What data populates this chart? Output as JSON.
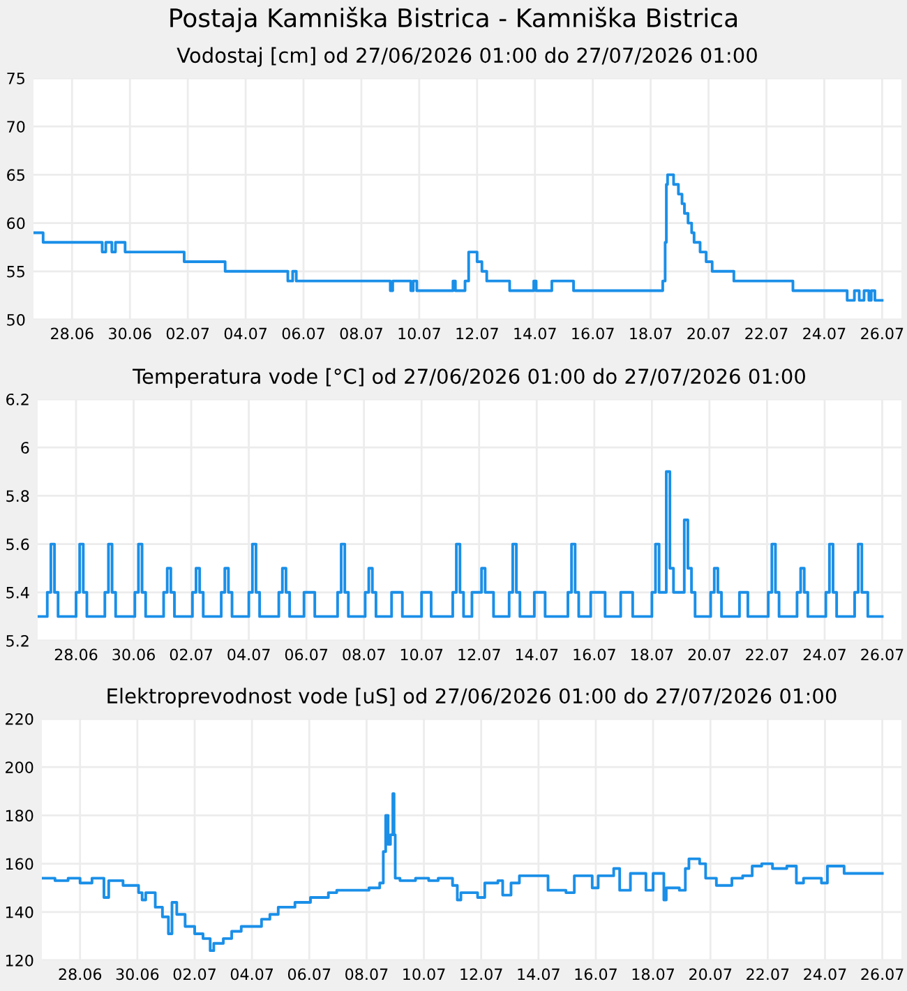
{
  "chart_data": [
    {
      "type": "step",
      "title": "Postaja Kamniška Bistrica - Kamniška Bistrica",
      "subtitle": "Vodostaj [cm] od 27/06/2026 01:00 do 27/07/2026 01:00",
      "grid": true,
      "line_style": "solid",
      "marker": "none",
      "xlim": [
        "2026-06-26T16:00",
        "2026-07-26T16:00"
      ],
      "ylim": [
        50,
        75
      ],
      "yticks": [
        50,
        55,
        60,
        65,
        70,
        75
      ],
      "xticks": [
        {
          "value": "2026-06-28",
          "label": "28.06"
        },
        {
          "value": "2026-06-30",
          "label": "30.06"
        },
        {
          "value": "2026-07-02",
          "label": "02.07"
        },
        {
          "value": "2026-07-04",
          "label": "04.07"
        },
        {
          "value": "2026-07-06",
          "label": "06.07"
        },
        {
          "value": "2026-07-08",
          "label": "08.07"
        },
        {
          "value": "2026-07-10",
          "label": "10.07"
        },
        {
          "value": "2026-07-12",
          "label": "12.07"
        },
        {
          "value": "2026-07-14",
          "label": "14.07"
        },
        {
          "value": "2026-07-16",
          "label": "16.07"
        },
        {
          "value": "2026-07-18",
          "label": "18.07"
        },
        {
          "value": "2026-07-20",
          "label": "20.07"
        },
        {
          "value": "2026-07-22",
          "label": "22.07"
        },
        {
          "value": "2026-07-24",
          "label": "24.07"
        },
        {
          "value": "2026-07-26",
          "label": "26.07"
        }
      ],
      "x": [
        "2026-06-26T16:00",
        "2026-06-27T00:00",
        "2026-06-29T01:00",
        "2026-06-29T04:00",
        "2026-06-29T09:00",
        "2026-06-29T12:00",
        "2026-06-29T20:00",
        "2026-06-30T01:00",
        "2026-07-01T21:00",
        "2026-07-03T07:00",
        "2026-07-05T11:00",
        "2026-07-05T15:00",
        "2026-07-05T18:00",
        "2026-07-06T00:00",
        "2026-07-09T00:00",
        "2026-07-09T02:00",
        "2026-07-09T17:00",
        "2026-07-09T19:00",
        "2026-07-09T22:00",
        "2026-07-10T00:00",
        "2026-07-11T04:00",
        "2026-07-11T06:00",
        "2026-07-11T14:00",
        "2026-07-11T17:00",
        "2026-07-12T00:00",
        "2026-07-12T04:00",
        "2026-07-12T08:00",
        "2026-07-13T03:00",
        "2026-07-13T23:00",
        "2026-07-14T01:00",
        "2026-07-14T14:00",
        "2026-07-15T08:00",
        "2026-07-18T10:00",
        "2026-07-18T12:00",
        "2026-07-18T13:00",
        "2026-07-18T14:00",
        "2026-07-18T19:00",
        "2026-07-18T23:00",
        "2026-07-19T02:00",
        "2026-07-19T04:00",
        "2026-07-19T07:00",
        "2026-07-19T10:00",
        "2026-07-19T12:00",
        "2026-07-19T17:00",
        "2026-07-19T22:00",
        "2026-07-20T03:00",
        "2026-07-20T21:00",
        "2026-07-22T22:00",
        "2026-07-24T19:00",
        "2026-07-25T01:00",
        "2026-07-25T05:00",
        "2026-07-25T09:00",
        "2026-07-25T13:00",
        "2026-07-25T15:00",
        "2026-07-25T18:00",
        "2026-07-26T00:00"
      ],
      "series": [
        {
          "color": "#1a8fe8",
          "values": [
            59,
            58,
            57,
            58,
            57,
            58,
            57,
            57,
            56,
            55,
            54,
            55,
            54,
            54,
            53,
            54,
            53,
            54,
            53,
            53,
            54,
            53,
            54,
            57,
            56,
            55,
            54,
            53,
            54,
            53,
            54,
            53,
            54,
            58,
            64,
            65,
            64,
            63,
            62,
            61,
            60,
            59,
            58,
            57,
            56,
            55,
            54,
            53,
            52,
            53,
            52,
            53,
            52,
            53,
            52,
            52
          ]
        }
      ]
    },
    {
      "type": "step",
      "title": "Temperatura vode [°C] od 27/06/2026 01:00 do 27/07/2026 01:00",
      "grid": true,
      "line_style": "solid",
      "marker": "none",
      "xlim": [
        "2026-06-26T16:00",
        "2026-07-26T16:00"
      ],
      "ylim": [
        5.2,
        6.2
      ],
      "yticks": [
        5.2,
        5.4,
        5.6,
        5.8,
        6,
        6.2
      ],
      "xticks": [
        {
          "value": "2026-06-28",
          "label": "28.06"
        },
        {
          "value": "2026-06-30",
          "label": "30.06"
        },
        {
          "value": "2026-07-02",
          "label": "02.07"
        },
        {
          "value": "2026-07-04",
          "label": "04.07"
        },
        {
          "value": "2026-07-06",
          "label": "06.07"
        },
        {
          "value": "2026-07-08",
          "label": "08.07"
        },
        {
          "value": "2026-07-10",
          "label": "10.07"
        },
        {
          "value": "2026-07-12",
          "label": "12.07"
        },
        {
          "value": "2026-07-14",
          "label": "14.07"
        },
        {
          "value": "2026-07-16",
          "label": "16.07"
        },
        {
          "value": "2026-07-18",
          "label": "18.07"
        },
        {
          "value": "2026-07-20",
          "label": "20.07"
        },
        {
          "value": "2026-07-22",
          "label": "22.07"
        },
        {
          "value": "2026-07-24",
          "label": "24.07"
        },
        {
          "value": "2026-07-26",
          "label": "26.07"
        }
      ],
      "x": [
        "2026-06-26T16:00",
        "2026-06-27T00:00",
        "2026-06-27T03:00",
        "2026-06-27T06:00",
        "2026-06-27T09:00",
        "2026-06-28T00:00",
        "2026-06-28T03:00",
        "2026-06-28T06:00",
        "2026-06-28T09:00",
        "2026-06-29T00:00",
        "2026-06-29T03:00",
        "2026-06-29T06:00",
        "2026-06-29T09:00",
        "2026-06-30T01:00",
        "2026-06-30T04:00",
        "2026-06-30T07:00",
        "2026-06-30T10:00",
        "2026-07-01T01:00",
        "2026-07-01T04:00",
        "2026-07-01T07:00",
        "2026-07-01T10:00",
        "2026-07-02T01:00",
        "2026-07-02T04:00",
        "2026-07-02T07:00",
        "2026-07-02T10:00",
        "2026-07-03T01:00",
        "2026-07-03T04:00",
        "2026-07-03T07:00",
        "2026-07-03T10:00",
        "2026-07-04T00:00",
        "2026-07-04T03:00",
        "2026-07-04T06:00",
        "2026-07-04T09:00",
        "2026-07-05T01:00",
        "2026-07-05T04:00",
        "2026-07-05T07:00",
        "2026-07-05T10:00",
        "2026-07-05T22:00",
        "2026-07-06T07:00",
        "2026-07-07T02:00",
        "2026-07-07T05:00",
        "2026-07-07T08:00",
        "2026-07-07T11:00",
        "2026-07-08T01:00",
        "2026-07-08T04:00",
        "2026-07-08T07:00",
        "2026-07-08T10:00",
        "2026-07-08T23:00",
        "2026-07-09T08:00",
        "2026-07-10T00:00",
        "2026-07-10T08:00",
        "2026-07-11T02:00",
        "2026-07-11T05:00",
        "2026-07-11T08:00",
        "2026-07-11T11:00",
        "2026-07-11T18:00",
        "2026-07-12T02:00",
        "2026-07-12T05:00",
        "2026-07-12T12:00",
        "2026-07-13T01:00",
        "2026-07-13T04:00",
        "2026-07-13T07:00",
        "2026-07-13T10:00",
        "2026-07-13T22:00",
        "2026-07-14T07:00",
        "2026-07-15T02:00",
        "2026-07-15T05:00",
        "2026-07-15T08:00",
        "2026-07-15T11:00",
        "2026-07-15T21:00",
        "2026-07-16T09:00",
        "2026-07-16T22:00",
        "2026-07-17T08:00",
        "2026-07-18T00:00",
        "2026-07-18T03:00",
        "2026-07-18T06:00",
        "2026-07-18T12:00",
        "2026-07-18T15:00",
        "2026-07-18T18:00",
        "2026-07-19T03:00",
        "2026-07-19T06:00",
        "2026-07-19T09:00",
        "2026-07-19T12:00",
        "2026-07-20T01:00",
        "2026-07-20T04:00",
        "2026-07-20T07:00",
        "2026-07-20T10:00",
        "2026-07-21T01:00",
        "2026-07-21T08:00",
        "2026-07-22T01:00",
        "2026-07-22T04:00",
        "2026-07-22T07:00",
        "2026-07-22T10:00",
        "2026-07-23T01:00",
        "2026-07-23T04:00",
        "2026-07-23T07:00",
        "2026-07-23T10:00",
        "2026-07-24T01:00",
        "2026-07-24T04:00",
        "2026-07-24T07:00",
        "2026-07-24T10:00",
        "2026-07-25T01:00",
        "2026-07-25T04:00",
        "2026-07-25T07:00",
        "2026-07-25T12:00",
        "2026-07-26T00:00"
      ],
      "series": [
        {
          "color": "#1a8fe8",
          "values": [
            5.3,
            5.4,
            5.6,
            5.4,
            5.3,
            5.4,
            5.6,
            5.4,
            5.3,
            5.4,
            5.6,
            5.4,
            5.3,
            5.4,
            5.6,
            5.4,
            5.3,
            5.4,
            5.5,
            5.4,
            5.3,
            5.4,
            5.5,
            5.4,
            5.3,
            5.4,
            5.5,
            5.4,
            5.3,
            5.4,
            5.6,
            5.4,
            5.3,
            5.4,
            5.5,
            5.4,
            5.3,
            5.4,
            5.3,
            5.4,
            5.6,
            5.4,
            5.3,
            5.4,
            5.5,
            5.4,
            5.3,
            5.4,
            5.3,
            5.4,
            5.3,
            5.4,
            5.6,
            5.4,
            5.3,
            5.4,
            5.5,
            5.4,
            5.3,
            5.4,
            5.6,
            5.4,
            5.3,
            5.4,
            5.3,
            5.4,
            5.6,
            5.4,
            5.3,
            5.4,
            5.3,
            5.4,
            5.3,
            5.4,
            5.6,
            5.4,
            5.9,
            5.5,
            5.4,
            5.7,
            5.5,
            5.4,
            5.3,
            5.4,
            5.5,
            5.4,
            5.3,
            5.4,
            5.3,
            5.4,
            5.6,
            5.4,
            5.3,
            5.4,
            5.5,
            5.4,
            5.3,
            5.4,
            5.6,
            5.4,
            5.3,
            5.4,
            5.6,
            5.4,
            5.3,
            5.3
          ]
        }
      ]
    },
    {
      "type": "step",
      "title": "Elektroprevodnost vode [uS] od 27/06/2026 01:00 do 27/07/2026 01:00",
      "grid": true,
      "line_style": "solid",
      "marker": "none",
      "xlim": [
        "2026-06-26T16:00",
        "2026-07-26T16:00"
      ],
      "ylim": [
        120,
        220
      ],
      "yticks": [
        120,
        140,
        160,
        180,
        200,
        220
      ],
      "xticks": [
        {
          "value": "2026-06-28",
          "label": "28.06"
        },
        {
          "value": "2026-06-30",
          "label": "30.06"
        },
        {
          "value": "2026-07-02",
          "label": "02.07"
        },
        {
          "value": "2026-07-04",
          "label": "04.07"
        },
        {
          "value": "2026-07-06",
          "label": "06.07"
        },
        {
          "value": "2026-07-08",
          "label": "08.07"
        },
        {
          "value": "2026-07-10",
          "label": "10.07"
        },
        {
          "value": "2026-07-12",
          "label": "12.07"
        },
        {
          "value": "2026-07-14",
          "label": "14.07"
        },
        {
          "value": "2026-07-16",
          "label": "16.07"
        },
        {
          "value": "2026-07-18",
          "label": "18.07"
        },
        {
          "value": "2026-07-20",
          "label": "20.07"
        },
        {
          "value": "2026-07-22",
          "label": "22.07"
        },
        {
          "value": "2026-07-24",
          "label": "24.07"
        },
        {
          "value": "2026-07-26",
          "label": "26.07"
        }
      ],
      "x": [
        "2026-06-26T16:00",
        "2026-06-27T03:00",
        "2026-06-27T14:00",
        "2026-06-28T00:00",
        "2026-06-28T10:00",
        "2026-06-28T20:00",
        "2026-06-29T00:00",
        "2026-06-29T12:00",
        "2026-06-30T01:00",
        "2026-06-30T04:00",
        "2026-06-30T07:00",
        "2026-06-30T15:00",
        "2026-06-30T21:00",
        "2026-07-01T02:00",
        "2026-07-01T05:00",
        "2026-07-01T09:00",
        "2026-07-01T16:00",
        "2026-07-02T00:00",
        "2026-07-02T07:00",
        "2026-07-02T13:00",
        "2026-07-02T16:00",
        "2026-07-03T00:00",
        "2026-07-03T07:00",
        "2026-07-03T15:00",
        "2026-07-04T08:00",
        "2026-07-04T15:00",
        "2026-07-04T22:00",
        "2026-07-05T12:00",
        "2026-07-06T01:00",
        "2026-07-06T16:00",
        "2026-07-06T23:00",
        "2026-07-08T02:00",
        "2026-07-08T11:00",
        "2026-07-08T14:00",
        "2026-07-08T16:00",
        "2026-07-08T18:00",
        "2026-07-08T20:00",
        "2026-07-08T22:00",
        "2026-07-08T23:00",
        "2026-07-09T00:00",
        "2026-07-09T04:00",
        "2026-07-09T17:00",
        "2026-07-10T04:00",
        "2026-07-10T12:00",
        "2026-07-11T00:00",
        "2026-07-11T04:00",
        "2026-07-11T07:00",
        "2026-07-11T21:00",
        "2026-07-12T03:00",
        "2026-07-12T14:00",
        "2026-07-12T18:00",
        "2026-07-13T01:00",
        "2026-07-13T08:00",
        "2026-07-14T02:00",
        "2026-07-14T08:00",
        "2026-07-14T23:00",
        "2026-07-15T06:00",
        "2026-07-15T21:00",
        "2026-07-16T02:00",
        "2026-07-16T15:00",
        "2026-07-16T20:00",
        "2026-07-17T05:00",
        "2026-07-17T18:00",
        "2026-07-18T00:00",
        "2026-07-18T09:00",
        "2026-07-18T11:00",
        "2026-07-18T22:00",
        "2026-07-19T03:00",
        "2026-07-19T06:00",
        "2026-07-19T15:00",
        "2026-07-19T20:00",
        "2026-07-20T05:00",
        "2026-07-20T18:00",
        "2026-07-21T03:00",
        "2026-07-21T11:00",
        "2026-07-21T19:00",
        "2026-07-22T04:00",
        "2026-07-22T16:00",
        "2026-07-23T00:00",
        "2026-07-23T06:00",
        "2026-07-23T21:00",
        "2026-07-24T02:00",
        "2026-07-24T16:00",
        "2026-07-26T00:00"
      ],
      "series": [
        {
          "color": "#1a8fe8",
          "values": [
            154,
            153,
            154,
            152,
            154,
            146,
            153,
            151,
            148,
            145,
            148,
            142,
            138,
            131,
            144,
            139,
            134,
            131,
            129,
            124,
            127,
            129,
            132,
            134,
            137,
            139,
            142,
            144,
            146,
            148,
            149,
            150,
            152,
            165,
            180,
            168,
            172,
            189,
            172,
            154,
            153,
            154,
            153,
            154,
            151,
            145,
            148,
            146,
            152,
            153,
            147,
            152,
            155,
            155,
            149,
            148,
            155,
            150,
            155,
            158,
            149,
            156,
            149,
            156,
            145,
            150,
            149,
            158,
            162,
            160,
            154,
            151,
            154,
            155,
            159,
            160,
            158,
            159,
            152,
            154,
            152,
            159,
            156,
            156
          ]
        }
      ]
    }
  ]
}
